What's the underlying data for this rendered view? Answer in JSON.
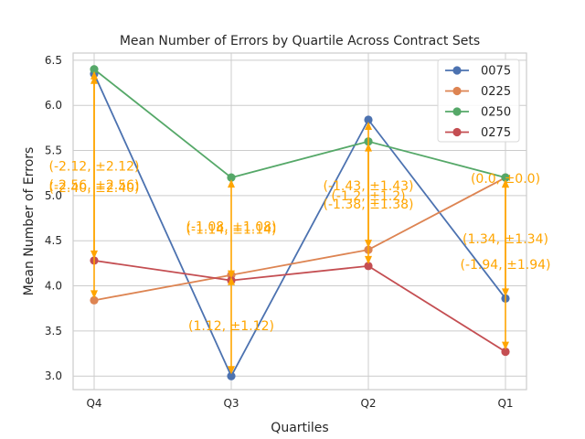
{
  "chart_data": {
    "type": "line",
    "title": "Mean Number of Errors by Quartile Across Contract Sets",
    "xlabel": "Quartiles",
    "ylabel": "Mean Number of Errors",
    "categories": [
      "Q4",
      "Q3",
      "Q2",
      "Q1"
    ],
    "ylim": [
      2.85,
      6.58
    ],
    "yticks": [
      "3.0",
      "3.5",
      "4.0",
      "4.5",
      "5.0",
      "5.5",
      "6.0",
      "6.5"
    ],
    "grid": true,
    "legend_position": "top-right",
    "series": [
      {
        "name": "0075",
        "color": "#4c72b0",
        "values": [
          6.35,
          3.0,
          5.84,
          3.86
        ]
      },
      {
        "name": "0225",
        "color": "#dd8452",
        "values": [
          3.84,
          4.12,
          4.4,
          5.2
        ]
      },
      {
        "name": "0250",
        "color": "#55a868",
        "values": [
          6.4,
          5.2,
          5.6,
          5.2
        ]
      },
      {
        "name": "0275",
        "color": "#c44e52",
        "values": [
          4.28,
          4.06,
          4.22,
          3.27
        ]
      }
    ],
    "error_arrows": [
      {
        "x": "Q4",
        "from": 6.4,
        "to": 3.84
      },
      {
        "x": "Q4",
        "from": 6.35,
        "to": 4.28
      },
      {
        "x": "Q3",
        "from": 5.2,
        "to": 4.06
      },
      {
        "x": "Q3",
        "from": 4.12,
        "to": 3.0
      },
      {
        "x": "Q2",
        "from": 5.84,
        "to": 4.4
      },
      {
        "x": "Q2",
        "from": 5.6,
        "to": 4.22
      },
      {
        "x": "Q1",
        "from": 5.2,
        "to": 3.86
      },
      {
        "x": "Q1",
        "from": 5.2,
        "to": 3.27
      }
    ],
    "annotations": [
      {
        "text": "(-2.12, ±2.12)",
        "x": "Q4",
        "y": 5.33
      },
      {
        "text": "(-2.56, ±2.56)",
        "x": "Q4",
        "y": 5.12
      },
      {
        "text": "(-2.40, ±2.40)",
        "x": "Q4",
        "y": 5.09
      },
      {
        "text": "(-1.08, ±1.08)",
        "x": "Q3",
        "y": 4.66
      },
      {
        "text": "(-1.14, ±1.14)",
        "x": "Q3",
        "y": 4.63
      },
      {
        "text": "(1.12, ±1.12)",
        "x": "Q3",
        "y": 3.56
      },
      {
        "text": "(-1.43, ±1.43)",
        "x": "Q2",
        "y": 5.11
      },
      {
        "text": "(-1.2, ±1.2)",
        "x": "Q2",
        "y": 5.0
      },
      {
        "text": "(-1.38, ±1.38)",
        "x": "Q2",
        "y": 4.91
      },
      {
        "text": "(0.0, ±0.0)",
        "x": "Q1",
        "y": 5.19
      },
      {
        "text": "(1.34, ±1.34)",
        "x": "Q1",
        "y": 4.52
      },
      {
        "text": "(-1.94, ±1.94)",
        "x": "Q1",
        "y": 4.24
      }
    ],
    "arrow_color": "#ffa500"
  }
}
